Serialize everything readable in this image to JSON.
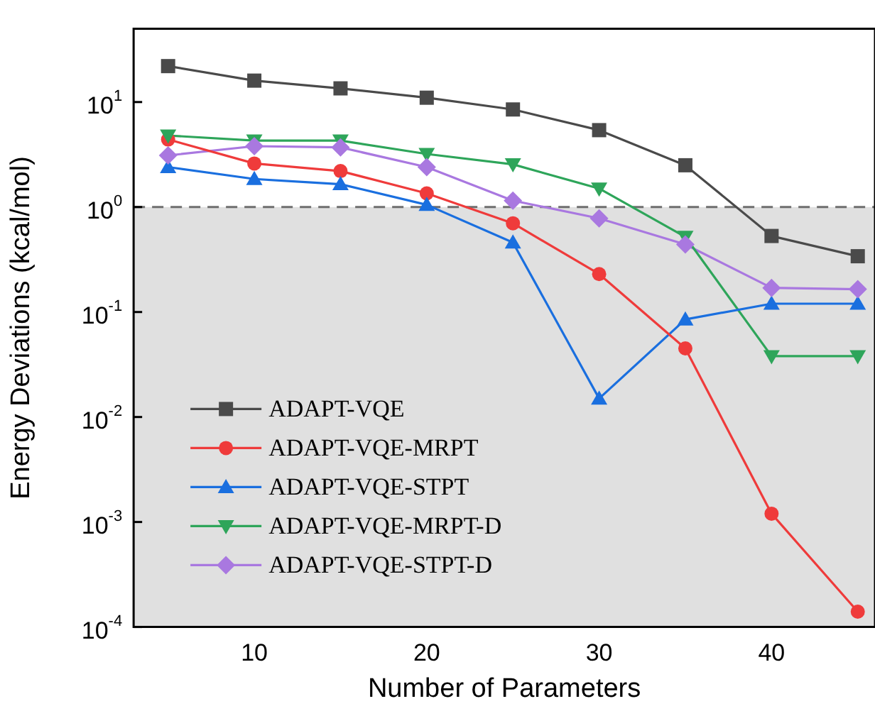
{
  "chart_data": {
    "type": "line",
    "xlabel": "Number of Parameters",
    "ylabel": "Energy Deviations (kcal/mol)",
    "x": [
      5,
      10,
      15,
      20,
      25,
      30,
      35,
      40,
      45
    ],
    "xlim": [
      3,
      46
    ],
    "xticks": [
      10,
      20,
      30,
      40
    ],
    "ylim": [
      0.0001,
      50
    ],
    "yticks": [
      {
        "value": 0.0001,
        "label": "10$^{-4}$"
      },
      {
        "value": 0.001,
        "label": "10$^{-3}$"
      },
      {
        "value": 0.01,
        "label": "10$^{-2}$"
      },
      {
        "value": 0.1,
        "label": "10$^{-1}$"
      },
      {
        "value": 1,
        "label": "10$^{0}$"
      },
      {
        "value": 10,
        "label": "10$^{1}$"
      }
    ],
    "log": "y",
    "grid": false,
    "legend": "left",
    "line_style": "solid",
    "series": [
      {
        "name": "ADAPT-VQE",
        "color": "#4a4a4a",
        "marker": "square",
        "values": [
          22,
          16,
          13.5,
          11,
          8.5,
          5.4,
          2.5,
          0.53,
          0.34
        ]
      },
      {
        "name": "ADAPT-VQE-MRPT",
        "color": "#ef3b3b",
        "marker": "circle",
        "values": [
          4.4,
          2.6,
          2.2,
          1.35,
          0.7,
          0.23,
          0.045,
          0.0012,
          0.00014
        ]
      },
      {
        "name": "ADAPT-VQE-STPT",
        "color": "#1a6fdf",
        "marker": "triangle",
        "values": [
          2.4,
          1.85,
          1.65,
          1.05,
          0.46,
          0.015,
          0.085,
          0.12,
          0.12
        ]
      },
      {
        "name": "ADAPT-VQE-MRPT-D",
        "color": "#2ea55a",
        "marker": "triangle-down",
        "values": [
          4.8,
          4.3,
          4.3,
          3.2,
          2.55,
          1.5,
          0.52,
          0.038,
          0.038
        ]
      },
      {
        "name": "ADAPT-VQE-STPT-D",
        "color": "#a978e0",
        "marker": "diamond",
        "values": [
          3.1,
          3.8,
          3.7,
          2.4,
          1.15,
          0.78,
          0.44,
          0.17,
          0.165
        ]
      }
    ],
    "ref_lines": [
      {
        "axis": "y",
        "value": 1,
        "color": "#6e6e6e",
        "line_style": "dashed"
      }
    ],
    "bands": [
      {
        "axis": "y",
        "from": 0.0001,
        "to": 1,
        "color": "#e0e0e0"
      }
    ]
  }
}
